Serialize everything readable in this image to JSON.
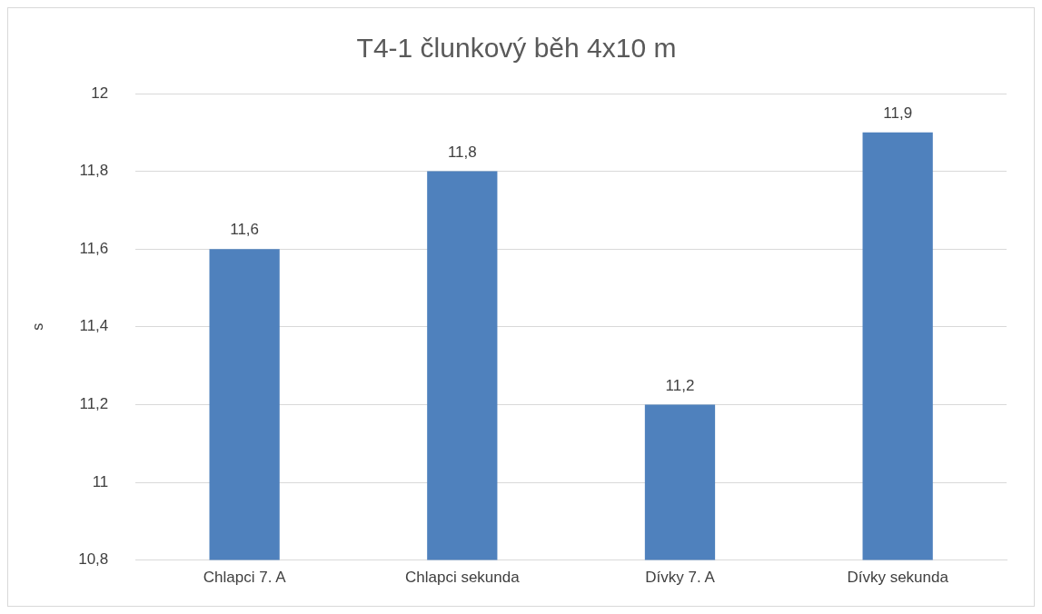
{
  "chart_data": {
    "type": "bar",
    "title": "T4-1 člunkový běh 4x10 m",
    "ylabel": "s",
    "categories": [
      "Chlapci 7. A",
      "Chlapci sekunda",
      "Dívky 7. A",
      "Dívky sekunda"
    ],
    "values": [
      11.6,
      11.8,
      11.2,
      11.9
    ],
    "color": "#4f81bd",
    "value_labels": [
      "11,6",
      "11,8",
      "11,2",
      "11,9"
    ],
    "ylim": [
      10.8,
      12
    ],
    "yticks": [
      {
        "value": 10.8,
        "label": "10,8"
      },
      {
        "value": 11,
        "label": "11"
      },
      {
        "value": 11.2,
        "label": "11,2"
      },
      {
        "value": 11.4,
        "label": "11,4"
      },
      {
        "value": 11.6,
        "label": "11,6"
      },
      {
        "value": 11.8,
        "label": "11,8"
      },
      {
        "value": 12,
        "label": "12"
      }
    ],
    "grid": "y",
    "legend": false
  }
}
